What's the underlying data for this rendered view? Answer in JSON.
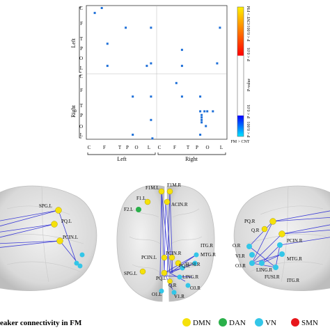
{
  "matrix": {
    "row_labels": [
      "C",
      "F",
      "T",
      "P",
      "O",
      "L",
      "C",
      "F",
      "T",
      "P",
      "O",
      "L"
    ],
    "col_labels": [
      "C",
      "F",
      "T",
      "P",
      "O",
      "L",
      "C",
      "F",
      "T",
      "P",
      "O",
      "L"
    ],
    "group_left": "Left",
    "group_right": "Right",
    "cells": [
      {
        "r": 0.06,
        "c": 0.06
      },
      {
        "r": 0.02,
        "c": 0.11
      },
      {
        "r": 0.18,
        "c": 0.28
      },
      {
        "r": 0.18,
        "c": 0.46
      },
      {
        "r": 0.18,
        "c": 0.95
      },
      {
        "r": 0.31,
        "c": 0.15
      },
      {
        "r": 0.36,
        "c": 0.68
      },
      {
        "r": 0.49,
        "c": 0.15
      },
      {
        "r": 0.47,
        "c": 0.46
      },
      {
        "r": 0.49,
        "c": 0.43
      },
      {
        "r": 0.49,
        "c": 0.68
      },
      {
        "r": 0.47,
        "c": 0.93
      },
      {
        "r": 0.63,
        "c": 0.64
      },
      {
        "r": 0.74,
        "c": 0.33
      },
      {
        "r": 0.74,
        "c": 0.46
      },
      {
        "r": 0.74,
        "c": 0.68
      },
      {
        "r": 0.74,
        "c": 0.81
      },
      {
        "r": 0.86,
        "c": 0.9
      },
      {
        "r": 0.86,
        "c": 0.84
      },
      {
        "r": 0.86,
        "c": 0.81
      },
      {
        "r": 0.91,
        "c": 0.82
      },
      {
        "r": 0.93,
        "c": 0.82
      },
      {
        "r": 0.95,
        "c": 0.82
      },
      {
        "r": 0.89,
        "c": 0.82
      },
      {
        "r": 0.86,
        "c": 0.86
      },
      {
        "r": 0.98,
        "c": 0.85
      },
      {
        "r": 0.93,
        "c": 0.46
      },
      {
        "r": 1.05,
        "c": 0.33
      },
      {
        "r": 1.08,
        "c": 0.47
      },
      {
        "r": 1.05,
        "c": 0.81
      }
    ]
  },
  "colorbar": {
    "top_label": "CNT > FM",
    "bottom_label": "FM > CNT",
    "mid_label": "P-value",
    "tick_labels": [
      "P < 0.001",
      "P < 0.01",
      "P < 0.01",
      "P < 0.001"
    ],
    "colors": {
      "top": "#fff000",
      "mid_top": "#ff0000",
      "mid_bottom": "#0000ff",
      "bottom": "#00e5ff"
    }
  },
  "left_brain_labels": [
    "SPG.L",
    "PQ.L",
    "PCIN.L"
  ],
  "center_brain_labels": [
    "F1M.L",
    "F1M.R",
    "F1.L",
    "F2.L",
    "ACIN.R",
    "ITG.R",
    "MTG.R",
    "PCIN.L",
    "PCIN.R",
    "PQ.R",
    "FUSI.R",
    "SPG.L",
    "PQ.L",
    "LING.R",
    "Q.R",
    "O1.L",
    "O3.R",
    "V1.R"
  ],
  "right_brain_labels": [
    "PQ.R",
    "Q.R",
    "PCIN.R",
    "O.R",
    "MTG.R",
    "VI.R",
    "O3.R",
    "LING.R",
    "FUSI.R",
    "ITG.R"
  ],
  "caption": "eaker connectivity in FM",
  "legend": [
    {
      "label": "DMN",
      "color": "#f5e10a"
    },
    {
      "label": "DAN",
      "color": "#2ab04a"
    },
    {
      "label": "VN",
      "color": "#33c6e8"
    },
    {
      "label": "SMN",
      "color": "#e8161b"
    }
  ]
}
